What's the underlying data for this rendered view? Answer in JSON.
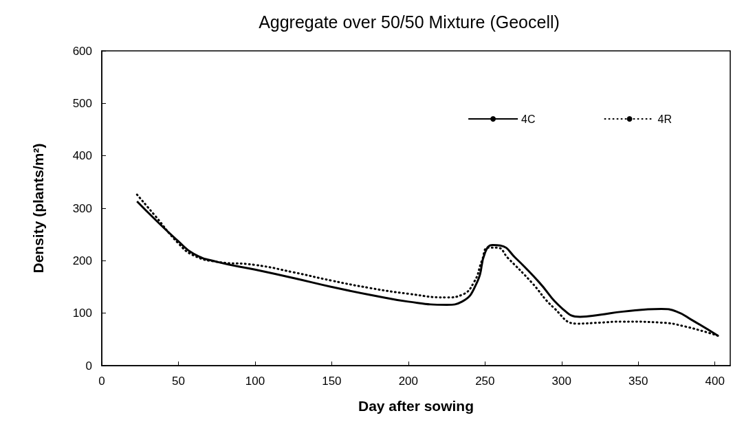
{
  "chart_data": {
    "type": "line",
    "title": "Aggregate over 50/50 Mixture (Geocell)",
    "xlabel": "Day after sowing",
    "ylabel": "Density (plants/m²)",
    "xlim": [
      0,
      410
    ],
    "xticks": [
      0,
      50,
      100,
      150,
      200,
      250,
      300,
      350,
      400
    ],
    "ylim": [
      0,
      600
    ],
    "yticks": [
      0,
      100,
      200,
      300,
      400,
      500,
      600
    ],
    "grid": false,
    "legend": "top right",
    "marker": "none",
    "series": [
      {
        "name": "4C",
        "color": "#000000",
        "line_style": "solid",
        "x": [
          23,
          35,
          50,
          60,
          75,
          100,
          125,
          150,
          175,
          200,
          225,
          235,
          245,
          250,
          255,
          260,
          270,
          285,
          300,
          312,
          325,
          340,
          365,
          375,
          385,
          402
        ],
        "values": [
          313,
          278,
          237,
          213,
          198,
          183,
          167,
          150,
          135,
          122,
          116,
          122,
          160,
          215,
          230,
          229,
          205,
          160,
          110,
          93,
          97,
          103,
          108,
          103,
          87,
          57
        ]
      },
      {
        "name": "4R",
        "color": "#000000",
        "line_style": "dotted",
        "x": [
          23,
          35,
          50,
          60,
          75,
          100,
          125,
          150,
          175,
          200,
          225,
          235,
          243,
          248,
          252,
          258,
          265,
          280,
          295,
          310,
          325,
          340,
          365,
          380,
          402
        ],
        "values": [
          326,
          285,
          233,
          210,
          198,
          192,
          178,
          162,
          148,
          137,
          130,
          135,
          160,
          200,
          225,
          225,
          205,
          160,
          110,
          80,
          82,
          84,
          82,
          75,
          57
        ]
      }
    ]
  }
}
